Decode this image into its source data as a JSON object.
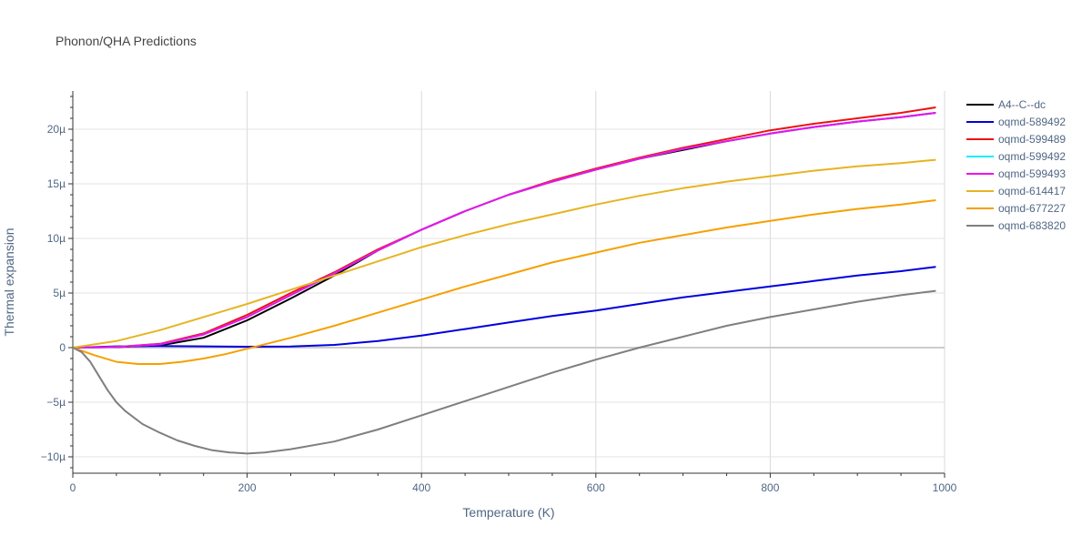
{
  "chart_data": {
    "type": "line",
    "title": "Phonon/QHA Predictions",
    "xlabel": "Temperature (K)",
    "ylabel": "Thermal expansion",
    "xlim": [
      0,
      1000
    ],
    "ylim": [
      -11.5,
      23.5
    ],
    "x_ticks": [
      0,
      200,
      400,
      600,
      800,
      1000
    ],
    "y_ticks": [
      -10,
      -5,
      0,
      5,
      10,
      15,
      20
    ],
    "y_tick_labels": [
      "−10µ",
      "−5µ",
      "0",
      "5µ",
      "10µ",
      "15µ",
      "20µ"
    ],
    "grid": true,
    "legend_position": "right",
    "series": [
      {
        "name": "A4--C--dc",
        "color": "#000000",
        "x": [
          0,
          50,
          100,
          150,
          200,
          250,
          300,
          350,
          400,
          450,
          500,
          550,
          600,
          650,
          700,
          750,
          800,
          850,
          900,
          950,
          990
        ],
        "y": [
          0,
          0.05,
          0.2,
          0.9,
          2.5,
          4.5,
          6.6,
          8.9,
          10.8,
          12.5,
          14.0,
          15.2,
          16.3,
          17.3,
          18.1,
          18.9,
          19.6,
          20.2,
          20.7,
          21.1,
          21.5
        ]
      },
      {
        "name": "oqmd-589492",
        "color": "#0000dd",
        "x": [
          0,
          50,
          100,
          150,
          200,
          250,
          300,
          350,
          400,
          450,
          500,
          550,
          600,
          650,
          700,
          750,
          800,
          850,
          900,
          950,
          990
        ],
        "y": [
          0,
          0.12,
          0.15,
          0.12,
          0.08,
          0.1,
          0.25,
          0.6,
          1.1,
          1.7,
          2.3,
          2.9,
          3.4,
          4.0,
          4.6,
          5.1,
          5.6,
          6.1,
          6.6,
          7.0,
          7.4
        ]
      },
      {
        "name": "oqmd-599489",
        "color": "#ee1111",
        "x": [
          0,
          50,
          100,
          150,
          200,
          250,
          300,
          350,
          400,
          450,
          500,
          550,
          600,
          650,
          700,
          750,
          800,
          850,
          900,
          950,
          990
        ],
        "y": [
          0,
          0.06,
          0.35,
          1.3,
          3.0,
          5.0,
          6.9,
          9.0,
          10.8,
          12.5,
          14.0,
          15.3,
          16.4,
          17.4,
          18.3,
          19.1,
          19.9,
          20.5,
          21.0,
          21.5,
          22.0
        ]
      },
      {
        "name": "oqmd-599492",
        "color": "#11eeff",
        "x": [
          0,
          50,
          100,
          150,
          200,
          250,
          300,
          350,
          400,
          450,
          500,
          550,
          600,
          650,
          700,
          750,
          800,
          850,
          900,
          950,
          990
        ],
        "y": [
          0,
          0.06,
          0.3,
          1.2,
          2.8,
          4.8,
          6.8,
          8.9,
          10.8,
          12.5,
          14.0,
          15.2,
          16.3,
          17.3,
          18.2,
          18.9,
          19.6,
          20.2,
          20.7,
          21.1,
          21.5
        ]
      },
      {
        "name": "oqmd-599493",
        "color": "#ee11ee",
        "x": [
          0,
          50,
          100,
          150,
          200,
          250,
          300,
          350,
          400,
          450,
          500,
          550,
          600,
          650,
          700,
          750,
          800,
          850,
          900,
          950,
          990
        ],
        "y": [
          0,
          0.06,
          0.3,
          1.2,
          2.8,
          4.8,
          6.8,
          8.9,
          10.8,
          12.5,
          14.0,
          15.2,
          16.3,
          17.3,
          18.2,
          18.9,
          19.6,
          20.2,
          20.7,
          21.1,
          21.5
        ]
      },
      {
        "name": "oqmd-614417",
        "color": "#e6b422",
        "x": [
          0,
          50,
          100,
          150,
          200,
          250,
          300,
          350,
          400,
          450,
          500,
          550,
          600,
          650,
          700,
          750,
          800,
          850,
          900,
          950,
          990
        ],
        "y": [
          0,
          0.6,
          1.6,
          2.8,
          4.0,
          5.3,
          6.6,
          7.9,
          9.2,
          10.3,
          11.3,
          12.2,
          13.1,
          13.9,
          14.6,
          15.2,
          15.7,
          16.2,
          16.6,
          16.9,
          17.2
        ]
      },
      {
        "name": "oqmd-677227",
        "color": "#f5a000",
        "x": [
          0,
          25,
          50,
          75,
          100,
          125,
          150,
          175,
          200,
          225,
          250,
          300,
          350,
          400,
          450,
          500,
          550,
          600,
          650,
          700,
          750,
          800,
          850,
          900,
          950,
          990
        ],
        "y": [
          0,
          -0.7,
          -1.3,
          -1.5,
          -1.5,
          -1.3,
          -1.0,
          -0.6,
          -0.1,
          0.4,
          0.9,
          2.0,
          3.2,
          4.4,
          5.6,
          6.7,
          7.8,
          8.7,
          9.6,
          10.3,
          11.0,
          11.6,
          12.2,
          12.7,
          13.1,
          13.5
        ]
      },
      {
        "name": "oqmd-683820",
        "color": "#7f7f7f",
        "x": [
          0,
          10,
          20,
          30,
          40,
          50,
          60,
          80,
          100,
          120,
          140,
          160,
          180,
          200,
          220,
          250,
          300,
          350,
          400,
          450,
          500,
          550,
          600,
          650,
          700,
          750,
          800,
          850,
          900,
          950,
          990
        ],
        "y": [
          0,
          -0.4,
          -1.3,
          -2.6,
          -3.9,
          -5.0,
          -5.8,
          -7.0,
          -7.8,
          -8.5,
          -9.0,
          -9.4,
          -9.6,
          -9.7,
          -9.6,
          -9.3,
          -8.6,
          -7.5,
          -6.2,
          -4.9,
          -3.6,
          -2.3,
          -1.1,
          0.0,
          1.0,
          2.0,
          2.8,
          3.5,
          4.2,
          4.8,
          5.2
        ]
      }
    ]
  }
}
